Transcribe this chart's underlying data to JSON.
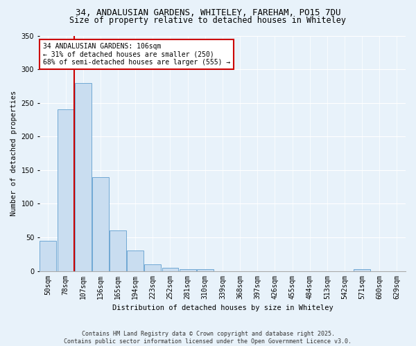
{
  "title1": "34, ANDALUSIAN GARDENS, WHITELEY, FAREHAM, PO15 7DU",
  "title2": "Size of property relative to detached houses in Whiteley",
  "xlabel": "Distribution of detached houses by size in Whiteley",
  "ylabel": "Number of detached properties",
  "categories": [
    "50sqm",
    "78sqm",
    "107sqm",
    "136sqm",
    "165sqm",
    "194sqm",
    "223sqm",
    "252sqm",
    "281sqm",
    "310sqm",
    "339sqm",
    "368sqm",
    "397sqm",
    "426sqm",
    "455sqm",
    "484sqm",
    "513sqm",
    "542sqm",
    "571sqm",
    "600sqm",
    "629sqm"
  ],
  "values": [
    45,
    240,
    280,
    140,
    60,
    30,
    10,
    5,
    3,
    3,
    0,
    0,
    0,
    0,
    0,
    0,
    0,
    0,
    3,
    0,
    0
  ],
  "bar_color": "#c9ddf0",
  "bar_edge_color": "#6fa8d4",
  "vline_color": "#cc0000",
  "vline_x_index": 2,
  "annotation_text": "34 ANDALUSIAN GARDENS: 106sqm\n← 31% of detached houses are smaller (250)\n68% of semi-detached houses are larger (555) →",
  "annotation_box_facecolor": "#ffffff",
  "annotation_box_edgecolor": "#cc0000",
  "ylim": [
    0,
    350
  ],
  "yticks": [
    0,
    50,
    100,
    150,
    200,
    250,
    300,
    350
  ],
  "footer1": "Contains HM Land Registry data © Crown copyright and database right 2025.",
  "footer2": "Contains public sector information licensed under the Open Government Licence v3.0.",
  "bg_color": "#e8f2fa",
  "grid_color": "#ffffff",
  "title_fontsize": 9,
  "subtitle_fontsize": 8.5,
  "axis_label_fontsize": 7.5,
  "tick_fontsize": 7,
  "annotation_fontsize": 7,
  "footer_fontsize": 6
}
